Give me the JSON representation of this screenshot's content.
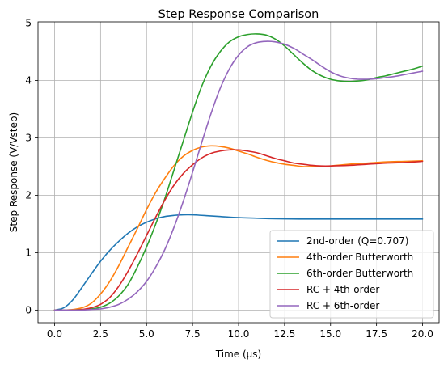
{
  "chart_data": {
    "type": "line",
    "title": "Step Response Comparison",
    "xlabel": "Time (μs)",
    "ylabel": "Step Response (V/Vstep)",
    "xlim": [
      -0.9,
      20.9
    ],
    "ylim": [
      -0.22,
      5.02
    ],
    "xticks": [
      0,
      2.5,
      5,
      7.5,
      10,
      12.5,
      15,
      17.5,
      20
    ],
    "xtick_labels": [
      "0.0",
      "2.5",
      "5.0",
      "7.5",
      "10.0",
      "12.5",
      "15.0",
      "17.5",
      "20.0"
    ],
    "yticks": [
      0,
      1,
      2,
      3,
      4,
      5
    ],
    "ytick_labels": [
      "0",
      "1",
      "2",
      "3",
      "4",
      "5"
    ],
    "grid": true,
    "legend_position": "lower-right",
    "series": [
      {
        "name": "2nd-order (Q=0.707)",
        "color": "#1f77b4",
        "x": [
          0,
          0.5,
          1,
          1.5,
          2,
          2.5,
          3,
          3.5,
          4,
          4.5,
          5,
          5.5,
          6,
          6.5,
          7,
          7.5,
          8,
          9,
          10,
          11,
          12,
          14,
          16,
          18,
          20
        ],
        "y": [
          0,
          0.04,
          0.18,
          0.4,
          0.63,
          0.85,
          1.04,
          1.2,
          1.34,
          1.45,
          1.53,
          1.59,
          1.63,
          1.65,
          1.66,
          1.66,
          1.65,
          1.63,
          1.61,
          1.6,
          1.59,
          1.585,
          1.585,
          1.585,
          1.585
        ]
      },
      {
        "name": "4th-order Butterworth",
        "color": "#ff7f0e",
        "x": [
          0,
          0.5,
          1,
          1.5,
          2,
          2.5,
          3,
          3.5,
          4,
          4.5,
          5,
          5.5,
          6,
          6.5,
          7,
          7.5,
          8,
          8.5,
          9,
          9.5,
          10,
          10.5,
          11,
          11.5,
          12,
          12.5,
          13,
          13.5,
          14,
          14.5,
          15,
          16,
          17,
          18,
          19,
          20
        ],
        "y": [
          0,
          0.0,
          0.01,
          0.04,
          0.12,
          0.28,
          0.5,
          0.78,
          1.1,
          1.42,
          1.75,
          2.05,
          2.3,
          2.52,
          2.68,
          2.78,
          2.84,
          2.86,
          2.85,
          2.82,
          2.77,
          2.72,
          2.66,
          2.61,
          2.57,
          2.54,
          2.52,
          2.5,
          2.5,
          2.5,
          2.51,
          2.54,
          2.56,
          2.58,
          2.59,
          2.6
        ]
      },
      {
        "name": "6th-order Butterworth",
        "color": "#2ca02c",
        "x": [
          0,
          1,
          1.5,
          2,
          2.5,
          3,
          3.5,
          4,
          4.5,
          5,
          5.5,
          6,
          6.5,
          7,
          7.5,
          8,
          8.5,
          9,
          9.5,
          10,
          10.5,
          11,
          11.5,
          12,
          12.5,
          13,
          13.5,
          14,
          14.5,
          15,
          15.5,
          16,
          16.5,
          17,
          17.5,
          18,
          18.5,
          19,
          19.5,
          20
        ],
        "y": [
          0,
          0.0,
          0.01,
          0.02,
          0.05,
          0.12,
          0.25,
          0.45,
          0.75,
          1.1,
          1.5,
          1.95,
          2.45,
          2.95,
          3.45,
          3.9,
          4.25,
          4.5,
          4.67,
          4.76,
          4.8,
          4.81,
          4.79,
          4.72,
          4.6,
          4.45,
          4.3,
          4.17,
          4.08,
          4.02,
          3.99,
          3.98,
          3.99,
          4.01,
          4.05,
          4.08,
          4.12,
          4.16,
          4.2,
          4.25
        ]
      },
      {
        "name": "RC + 4th-order",
        "color": "#d62728",
        "x": [
          0,
          0.5,
          1,
          1.5,
          2,
          2.5,
          3,
          3.5,
          4,
          4.5,
          5,
          5.5,
          6,
          6.5,
          7,
          7.5,
          8,
          8.5,
          9,
          9.5,
          10,
          10.5,
          11,
          11.5,
          12,
          12.5,
          13,
          13.5,
          14,
          14.5,
          15,
          16,
          17,
          18,
          19,
          20
        ],
        "y": [
          0,
          0.0,
          0.0,
          0.01,
          0.04,
          0.1,
          0.22,
          0.42,
          0.68,
          0.98,
          1.3,
          1.62,
          1.92,
          2.18,
          2.38,
          2.53,
          2.65,
          2.73,
          2.77,
          2.79,
          2.79,
          2.77,
          2.74,
          2.69,
          2.64,
          2.6,
          2.56,
          2.54,
          2.52,
          2.51,
          2.51,
          2.52,
          2.54,
          2.56,
          2.57,
          2.59
        ]
      },
      {
        "name": "RC + 6th-order",
        "color": "#9467bd",
        "x": [
          0,
          1,
          1.5,
          2,
          2.5,
          3,
          3.5,
          4,
          4.5,
          5,
          5.5,
          6,
          6.5,
          7,
          7.5,
          8,
          8.5,
          9,
          9.5,
          10,
          10.5,
          11,
          11.5,
          12,
          12.5,
          13,
          13.5,
          14,
          14.5,
          15,
          15.5,
          16,
          16.5,
          17,
          17.5,
          18,
          18.5,
          19,
          19.5,
          20
        ],
        "y": [
          0,
          0.0,
          0.0,
          0.01,
          0.02,
          0.05,
          0.1,
          0.19,
          0.32,
          0.5,
          0.75,
          1.06,
          1.45,
          1.9,
          2.4,
          2.92,
          3.42,
          3.86,
          4.2,
          4.44,
          4.59,
          4.66,
          4.68,
          4.67,
          4.63,
          4.56,
          4.46,
          4.36,
          4.25,
          4.15,
          4.08,
          4.04,
          4.02,
          4.02,
          4.03,
          4.05,
          4.07,
          4.1,
          4.13,
          4.16
        ]
      }
    ]
  }
}
